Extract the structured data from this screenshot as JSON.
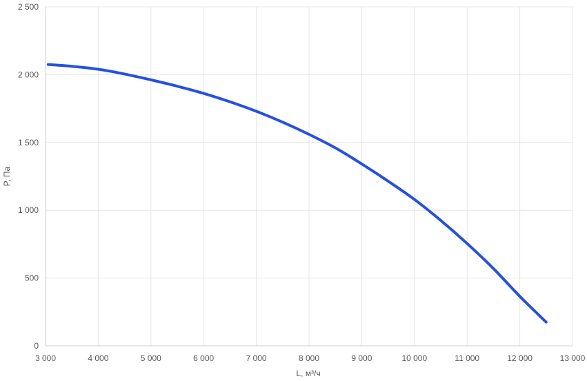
{
  "chart_data": {
    "type": "line",
    "xlabel": "L, м³/ч",
    "ylabel": "P, Па",
    "xlim": [
      3000,
      13000
    ],
    "ylim": [
      0,
      2500
    ],
    "x_ticks": [
      3000,
      4000,
      5000,
      6000,
      7000,
      8000,
      9000,
      10000,
      11000,
      12000,
      13000
    ],
    "x_tick_labels": [
      "3 000",
      "4 000",
      "5 000",
      "6 000",
      "7 000",
      "8 000",
      "9 000",
      "10 000",
      "11 000",
      "12 000",
      "13 000"
    ],
    "y_ticks": [
      0,
      500,
      1000,
      1500,
      2000,
      2500
    ],
    "y_tick_labels": [
      "0",
      "500",
      "1 000",
      "1 500",
      "2 000",
      "2 500"
    ],
    "grid": true,
    "series": [
      {
        "color": "#2450e6",
        "x": [
          3050,
          3500,
          4000,
          4500,
          5000,
          5500,
          6000,
          6500,
          7000,
          7500,
          8000,
          8500,
          9000,
          9500,
          10000,
          10500,
          11000,
          11500,
          12000,
          12500
        ],
        "y": [
          2075,
          2062,
          2040,
          2005,
          1962,
          1915,
          1862,
          1800,
          1730,
          1650,
          1560,
          1460,
          1342,
          1215,
          1080,
          925,
          755,
          570,
          365,
          175
        ]
      }
    ]
  }
}
